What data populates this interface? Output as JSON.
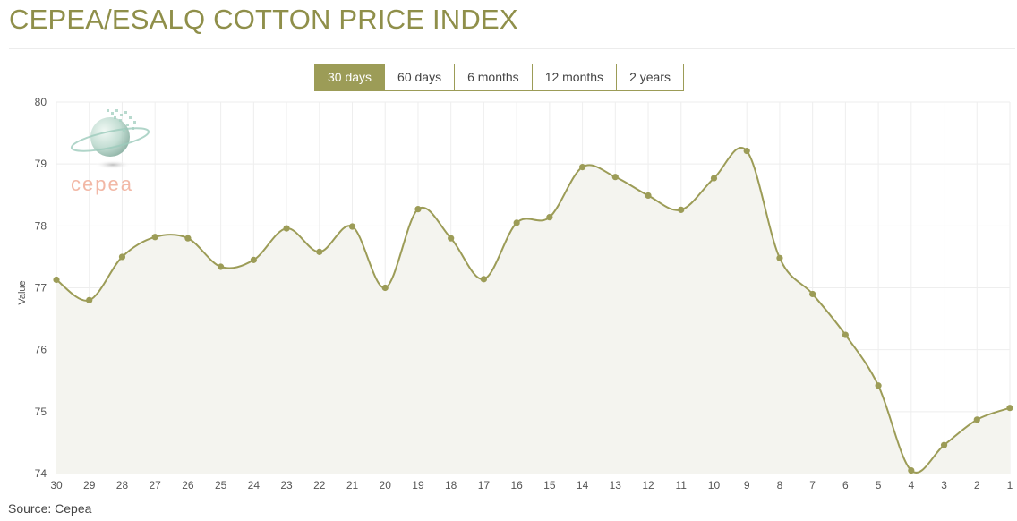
{
  "page": {
    "title": "CEPEA/ESALQ COTTON PRICE INDEX",
    "source": "Source: Cepea"
  },
  "range_tabs": [
    {
      "label": "30 days",
      "active": true
    },
    {
      "label": "60 days",
      "active": false
    },
    {
      "label": "6 months",
      "active": false
    },
    {
      "label": "12 months",
      "active": false
    },
    {
      "label": "2 years",
      "active": false
    }
  ],
  "logo": {
    "text": "cepea",
    "icon": "cepea-globe-logo"
  },
  "colors": {
    "line": "#9c9c57",
    "area": "#f4f4ef",
    "grid": "#eeeeee",
    "active_tab": "#9c9c57",
    "title": "#8f8f4a"
  },
  "chart_data": {
    "type": "area",
    "ylabel": "Value",
    "ylim": [
      74,
      80
    ],
    "yticks": [
      74,
      75,
      76,
      77,
      78,
      79,
      80
    ],
    "grid": true,
    "categories": [
      "30",
      "29",
      "28",
      "27",
      "26",
      "25",
      "24",
      "23",
      "22",
      "21",
      "20",
      "19",
      "18",
      "17",
      "16",
      "15",
      "14",
      "13",
      "12",
      "11",
      "10",
      "9",
      "8",
      "7",
      "6",
      "5",
      "4",
      "3",
      "2",
      "1"
    ],
    "series": [
      {
        "values": [
          77.13,
          76.8,
          77.5,
          77.82,
          77.8,
          77.34,
          77.45,
          77.96,
          77.58,
          77.99,
          77.0,
          78.27,
          77.8,
          77.14,
          78.05,
          78.14,
          78.95,
          78.79,
          78.49,
          78.26,
          78.77,
          79.21,
          77.48,
          76.9,
          76.24,
          75.42,
          74.05,
          74.46,
          74.87,
          75.06
        ]
      }
    ]
  }
}
